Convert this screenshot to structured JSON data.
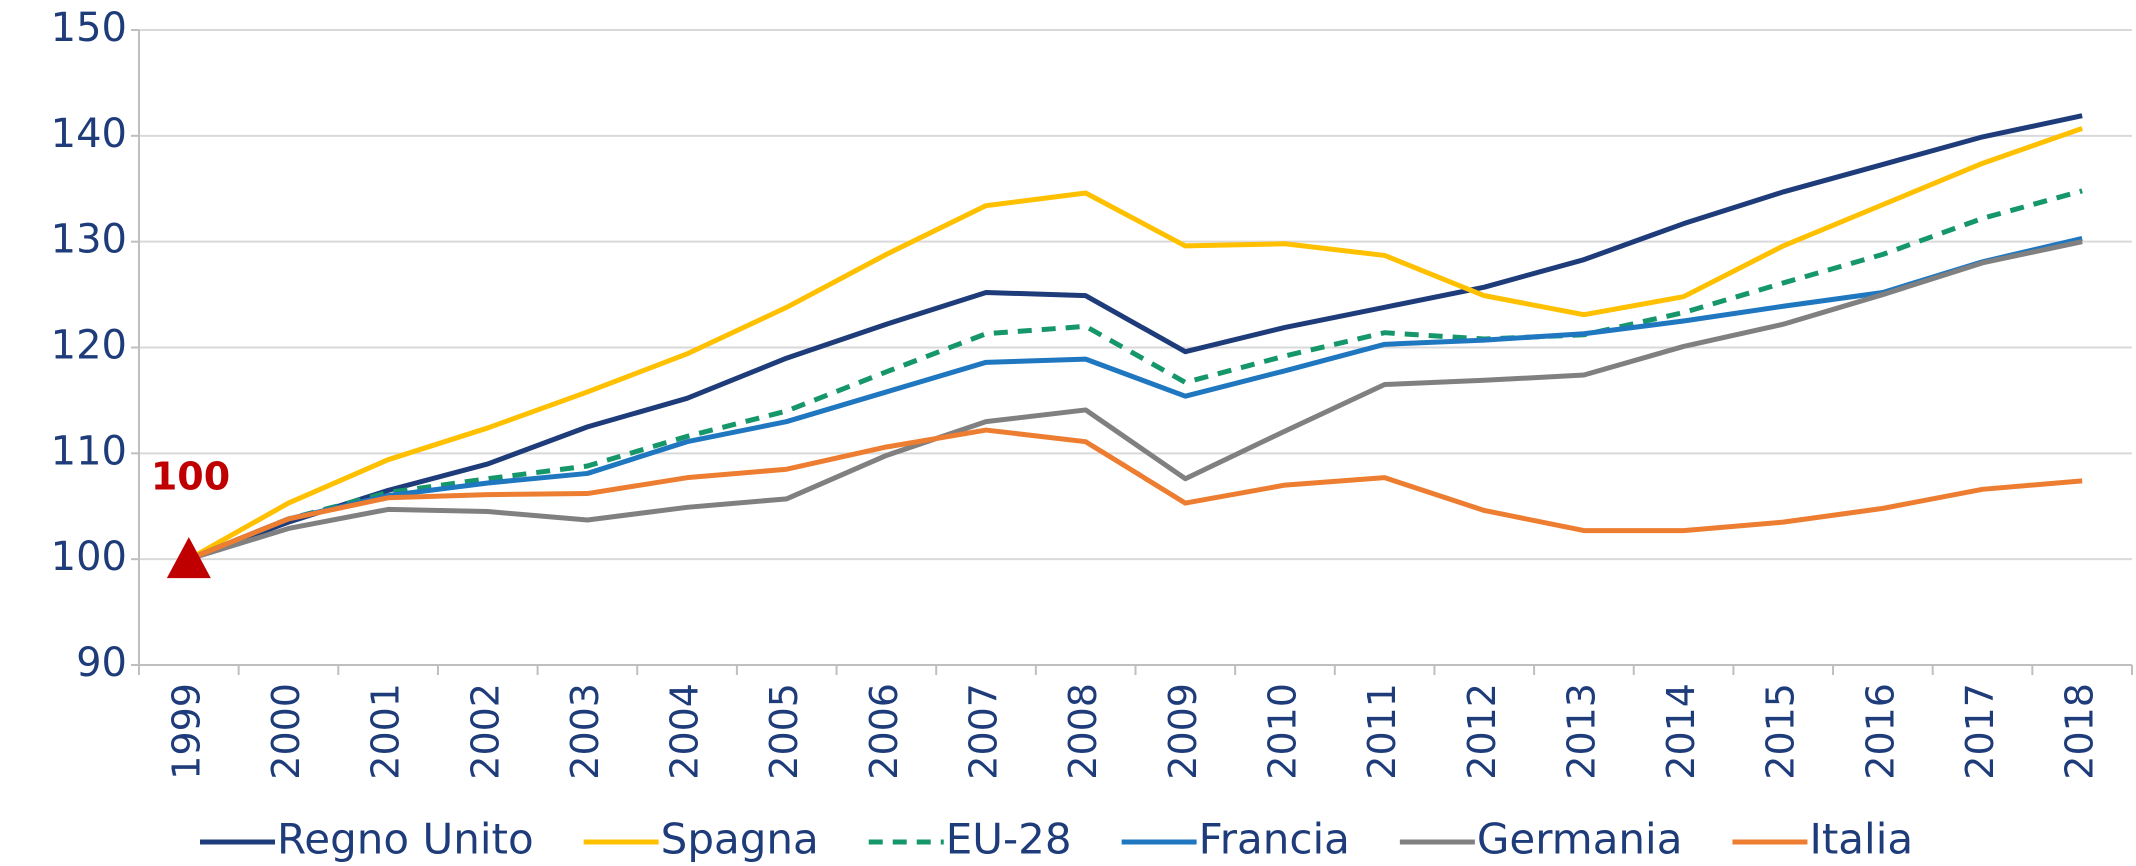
{
  "chart_data": {
    "type": "line",
    "categories": [
      "1999",
      "2000",
      "2001",
      "2002",
      "2003",
      "2004",
      "2005",
      "2006",
      "2007",
      "2008",
      "2009",
      "2010",
      "2011",
      "2012",
      "2013",
      "2014",
      "2015",
      "2016",
      "2017",
      "2018"
    ],
    "series": [
      {
        "name": "Regno Unito",
        "color": "#1f3c7a",
        "values": [
          100,
          103.5,
          106.5,
          109,
          112.5,
          115.2,
          119,
          122.2,
          125.2,
          124.9,
          119.6,
          121.9,
          123.8,
          125.7,
          128.3,
          131.7,
          134.7,
          137.3,
          139.9,
          141.9
        ]
      },
      {
        "name": "Spagna",
        "color": "#ffc000",
        "values": [
          100,
          105.3,
          109.4,
          112.4,
          115.8,
          119.4,
          123.8,
          128.8,
          133.4,
          134.6,
          129.6,
          129.8,
          128.7,
          124.9,
          123.1,
          124.8,
          129.6,
          133.5,
          137.4,
          140.7
        ]
      },
      {
        "name": "EU-28",
        "color": "#16976a",
        "dashed": true,
        "values": [
          100,
          103.8,
          106.3,
          107.6,
          108.8,
          111.6,
          114,
          117.7,
          121.3,
          122,
          116.7,
          119.2,
          121.4,
          120.8,
          121.2,
          123.3,
          126.1,
          128.8,
          132.2,
          134.8
        ]
      },
      {
        "name": "Francia",
        "color": "#1f77c0",
        "values": [
          100,
          103.8,
          106,
          107.2,
          108.1,
          111.1,
          113,
          115.8,
          118.6,
          118.9,
          115.4,
          117.8,
          120.3,
          120.7,
          121.3,
          122.5,
          123.9,
          125.2,
          128.1,
          130.3
        ]
      },
      {
        "name": "Germania",
        "color": "#808080",
        "values": [
          100,
          102.9,
          104.7,
          104.5,
          103.7,
          104.9,
          105.7,
          109.8,
          113,
          114.1,
          107.6,
          112.1,
          116.5,
          116.9,
          117.4,
          120.1,
          122.2,
          125,
          128,
          130
        ]
      },
      {
        "name": "Italia",
        "color": "#ed7d31",
        "values": [
          100,
          103.8,
          105.8,
          106.1,
          106.2,
          107.7,
          108.5,
          110.6,
          112.2,
          111.1,
          105.3,
          107,
          107.7,
          104.6,
          102.7,
          102.7,
          103.5,
          104.8,
          106.6,
          107.4
        ]
      }
    ],
    "annotation": {
      "text": "100",
      "category": 0,
      "value": 100,
      "color": "#c00000"
    },
    "ylim": [
      90,
      150
    ],
    "yticks": [
      90,
      100,
      110,
      120,
      130,
      140,
      150
    ],
    "grid": true,
    "legend": "bottom"
  }
}
